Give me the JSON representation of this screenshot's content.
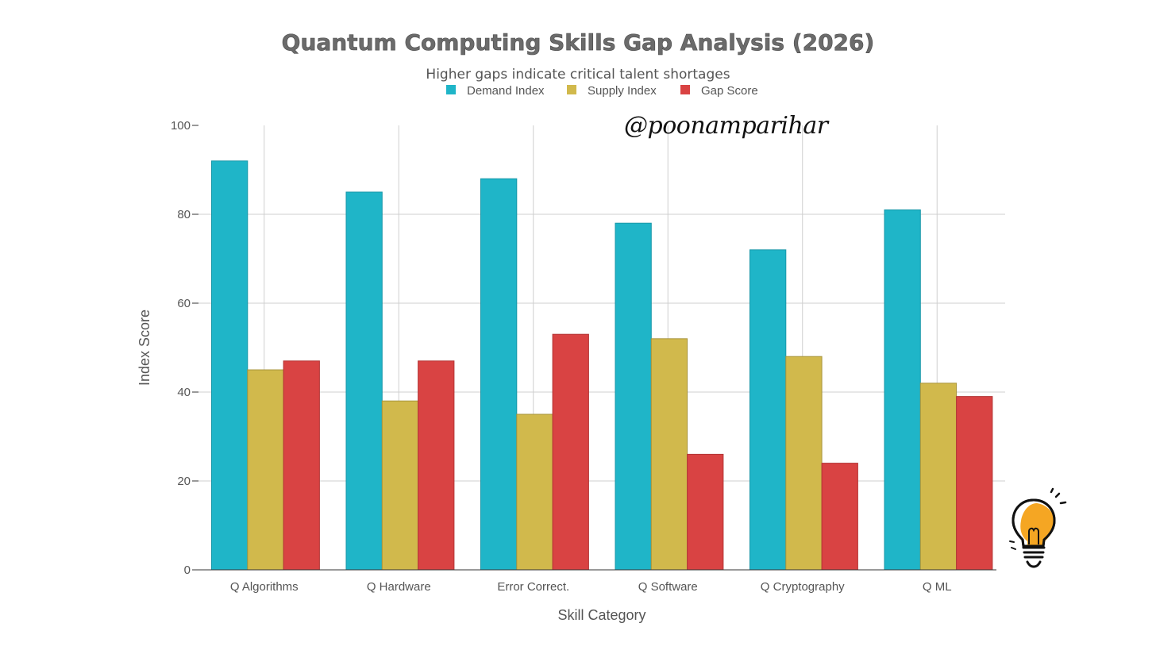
{
  "title": "Quantum Computing Skills Gap Analysis (2026)",
  "subtitle": "Higher gaps indicate critical talent shortages",
  "watermark": "@poonamparihar",
  "colors": {
    "demand": "#1fb5c8",
    "supply": "#d1b94c",
    "gap": "#d94343",
    "bulb": "#f5a623"
  },
  "icons": {
    "bulb": "lightbulb-icon"
  },
  "chart_data": {
    "type": "bar",
    "title": "Quantum Computing Skills Gap Analysis (2026)",
    "subtitle": "Higher gaps indicate critical talent shortages",
    "xlabel": "Skill Category",
    "ylabel": "Index Score",
    "ylim": [
      0,
      100
    ],
    "yticks": [
      0,
      20,
      40,
      60,
      80,
      100
    ],
    "grid": true,
    "legend": "top-center",
    "categories": [
      "Q Algorithms",
      "Q Hardware",
      "Error Correct.",
      "Q Software",
      "Q Cryptography",
      "Q ML"
    ],
    "series": [
      {
        "name": "Demand Index",
        "color": "#1fb5c8",
        "values": [
          92,
          85,
          88,
          78,
          72,
          81
        ]
      },
      {
        "name": "Supply Index",
        "color": "#d1b94c",
        "values": [
          45,
          38,
          35,
          52,
          48,
          42
        ]
      },
      {
        "name": "Gap Score",
        "color": "#d94343",
        "values": [
          47,
          47,
          53,
          26,
          24,
          39
        ]
      }
    ]
  }
}
